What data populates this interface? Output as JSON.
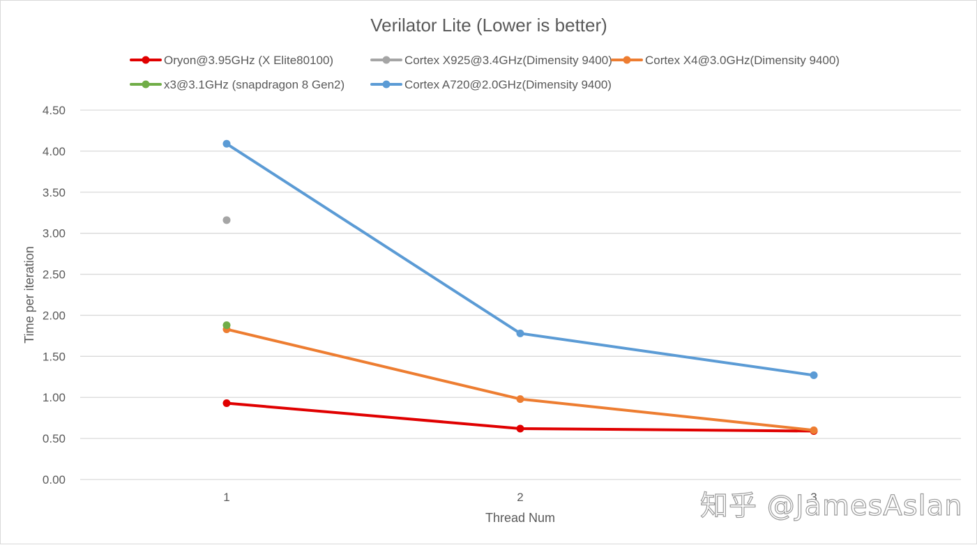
{
  "chart_data": {
    "type": "line",
    "title": "Verilator Lite (Lower is better)",
    "xlabel": "Thread Num",
    "ylabel": "Time per iteration",
    "categories": [
      "1",
      "2",
      "3"
    ],
    "ylim": [
      0,
      4.5
    ],
    "yticks": [
      "0.00",
      "0.50",
      "1.00",
      "1.50",
      "2.00",
      "2.50",
      "3.00",
      "3.50",
      "4.00",
      "4.50"
    ],
    "grid": "horizontal",
    "legend_position": "top",
    "series": [
      {
        "name": "Oryon@3.95GHz (X Elite80100)",
        "color": "#e00000",
        "values": [
          0.93,
          0.62,
          0.59
        ]
      },
      {
        "name": "Cortex X925@3.4GHz(Dimensity 9400)",
        "color": "#a5a5a5",
        "values": [
          3.16,
          null,
          null
        ]
      },
      {
        "name": "Cortex X4@3.0GHz(Dimensity 9400)",
        "color": "#ed7d31",
        "values": [
          1.83,
          0.98,
          0.6
        ]
      },
      {
        "name": "x3@3.1GHz (snapdragon 8 Gen2)",
        "color": "#70ad47",
        "values": [
          1.88,
          null,
          null
        ]
      },
      {
        "name": "Cortex A720@2.0GHz(Dimensity 9400)",
        "color": "#5b9bd5",
        "values": [
          4.09,
          1.78,
          1.27
        ]
      }
    ]
  },
  "watermark": "知乎 @JamesAslan"
}
